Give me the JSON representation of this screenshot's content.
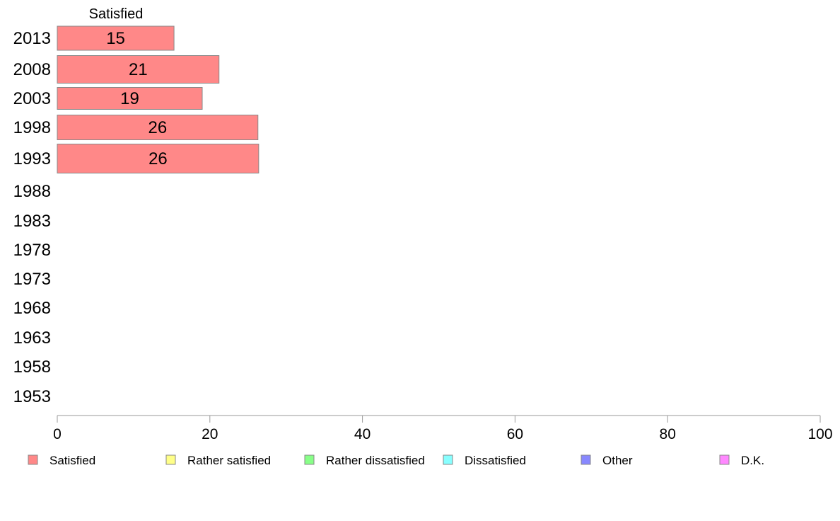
{
  "chart_data": {
    "type": "bar",
    "orientation": "horizontal",
    "stacked": true,
    "categories": [
      "2013",
      "2008",
      "2003",
      "1998",
      "1993",
      "1988",
      "1983",
      "1978",
      "1973",
      "1968",
      "1963",
      "1958",
      "1953"
    ],
    "series": [
      {
        "name": "Satisfied",
        "color": "#ff8888",
        "values": [
          15.3,
          21.2,
          19,
          26.3,
          26.4,
          null,
          null,
          null,
          null,
          null,
          null,
          null,
          null
        ],
        "labels": [
          "15",
          "21",
          "19",
          "26",
          "26",
          "",
          "",
          "",
          "",
          "",
          "",
          "",
          ""
        ]
      },
      {
        "name": "Rather satisfied",
        "color": "#ffff88",
        "values": [
          null,
          null,
          null,
          null,
          null,
          null,
          null,
          null,
          null,
          null,
          null,
          null,
          null
        ]
      },
      {
        "name": "Rather dissatisfied",
        "color": "#88ff88",
        "values": [
          null,
          null,
          null,
          null,
          null,
          null,
          null,
          null,
          null,
          null,
          null,
          null,
          null
        ]
      },
      {
        "name": "Dissatisfied",
        "color": "#88ffff",
        "values": [
          null,
          null,
          null,
          null,
          null,
          null,
          null,
          null,
          null,
          null,
          null,
          null,
          null
        ]
      },
      {
        "name": "Other",
        "color": "#8888ff",
        "values": [
          null,
          null,
          null,
          null,
          null,
          null,
          null,
          null,
          null,
          null,
          null,
          null,
          null
        ]
      },
      {
        "name": "D.K.",
        "color": "#ff88ff",
        "values": [
          null,
          null,
          null,
          null,
          null,
          null,
          null,
          null,
          null,
          null,
          null,
          null,
          null
        ]
      }
    ],
    "series_title": "Satisfied",
    "xlim": [
      0,
      100
    ],
    "xticks": [
      "0",
      "20",
      "40",
      "60",
      "80",
      "100"
    ],
    "grid": false,
    "legend_position": "bottom"
  }
}
